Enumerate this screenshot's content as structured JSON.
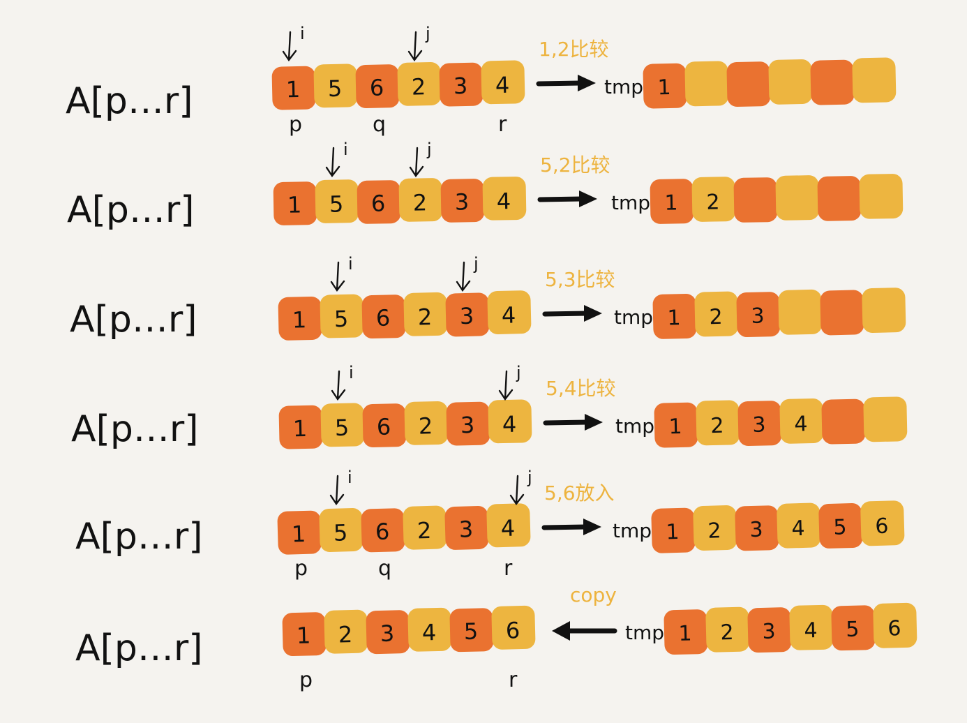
{
  "colors": {
    "background": "#f5f3ef",
    "dark_cell": "#ea7230",
    "light_cell": "#edb540",
    "ink": "#111111",
    "note": "#edb33e"
  },
  "rows": [
    {
      "label": "A[p…r]",
      "array": [
        "1",
        "5",
        "6",
        "2",
        "3",
        "4"
      ],
      "i_index": 0,
      "j_index": 3,
      "pointers": [
        "p",
        "q",
        "r"
      ],
      "note": "1,2比较",
      "arrow_direction": "right",
      "tmp_label": "tmp",
      "tmp": [
        "1",
        "",
        "",
        "",
        "",
        ""
      ]
    },
    {
      "label": "A[p…r]",
      "array": [
        "1",
        "5",
        "6",
        "2",
        "3",
        "4"
      ],
      "i_index": 1,
      "j_index": 3,
      "pointers": [],
      "note": "5,2比较",
      "arrow_direction": "right",
      "tmp_label": "tmp",
      "tmp": [
        "1",
        "2",
        "",
        "",
        "",
        ""
      ]
    },
    {
      "label": "A[p…r]",
      "array": [
        "1",
        "5",
        "6",
        "2",
        "3",
        "4"
      ],
      "i_index": 1,
      "j_index": 4,
      "pointers": [],
      "note": "5,3比较",
      "arrow_direction": "right",
      "tmp_label": "tmp",
      "tmp": [
        "1",
        "2",
        "3",
        "",
        "",
        ""
      ]
    },
    {
      "label": "A[p…r]",
      "array": [
        "1",
        "5",
        "6",
        "2",
        "3",
        "4"
      ],
      "i_index": 1,
      "j_index": 5,
      "pointers": [],
      "note": "5,4比较",
      "arrow_direction": "right",
      "tmp_label": "tmp",
      "tmp": [
        "1",
        "2",
        "3",
        "4",
        "",
        ""
      ]
    },
    {
      "label": "A[p…r]",
      "array": [
        "1",
        "5",
        "6",
        "2",
        "3",
        "4"
      ],
      "i_index": 1,
      "j_index": 6,
      "pointers": [
        "p",
        "q",
        "r"
      ],
      "note": "5,6放入",
      "arrow_direction": "right",
      "tmp_label": "tmp",
      "tmp": [
        "1",
        "2",
        "3",
        "4",
        "5",
        "6"
      ]
    },
    {
      "label": "A[p…r]",
      "array": [
        "1",
        "2",
        "3",
        "4",
        "5",
        "6"
      ],
      "i_index": null,
      "j_index": null,
      "pointers": [
        "p",
        "r"
      ],
      "note": "copy",
      "arrow_direction": "left",
      "tmp_label": "tmp",
      "tmp": [
        "1",
        "2",
        "3",
        "4",
        "5",
        "6"
      ]
    }
  ],
  "pointer_labels": {
    "i": "i",
    "j": "j"
  }
}
